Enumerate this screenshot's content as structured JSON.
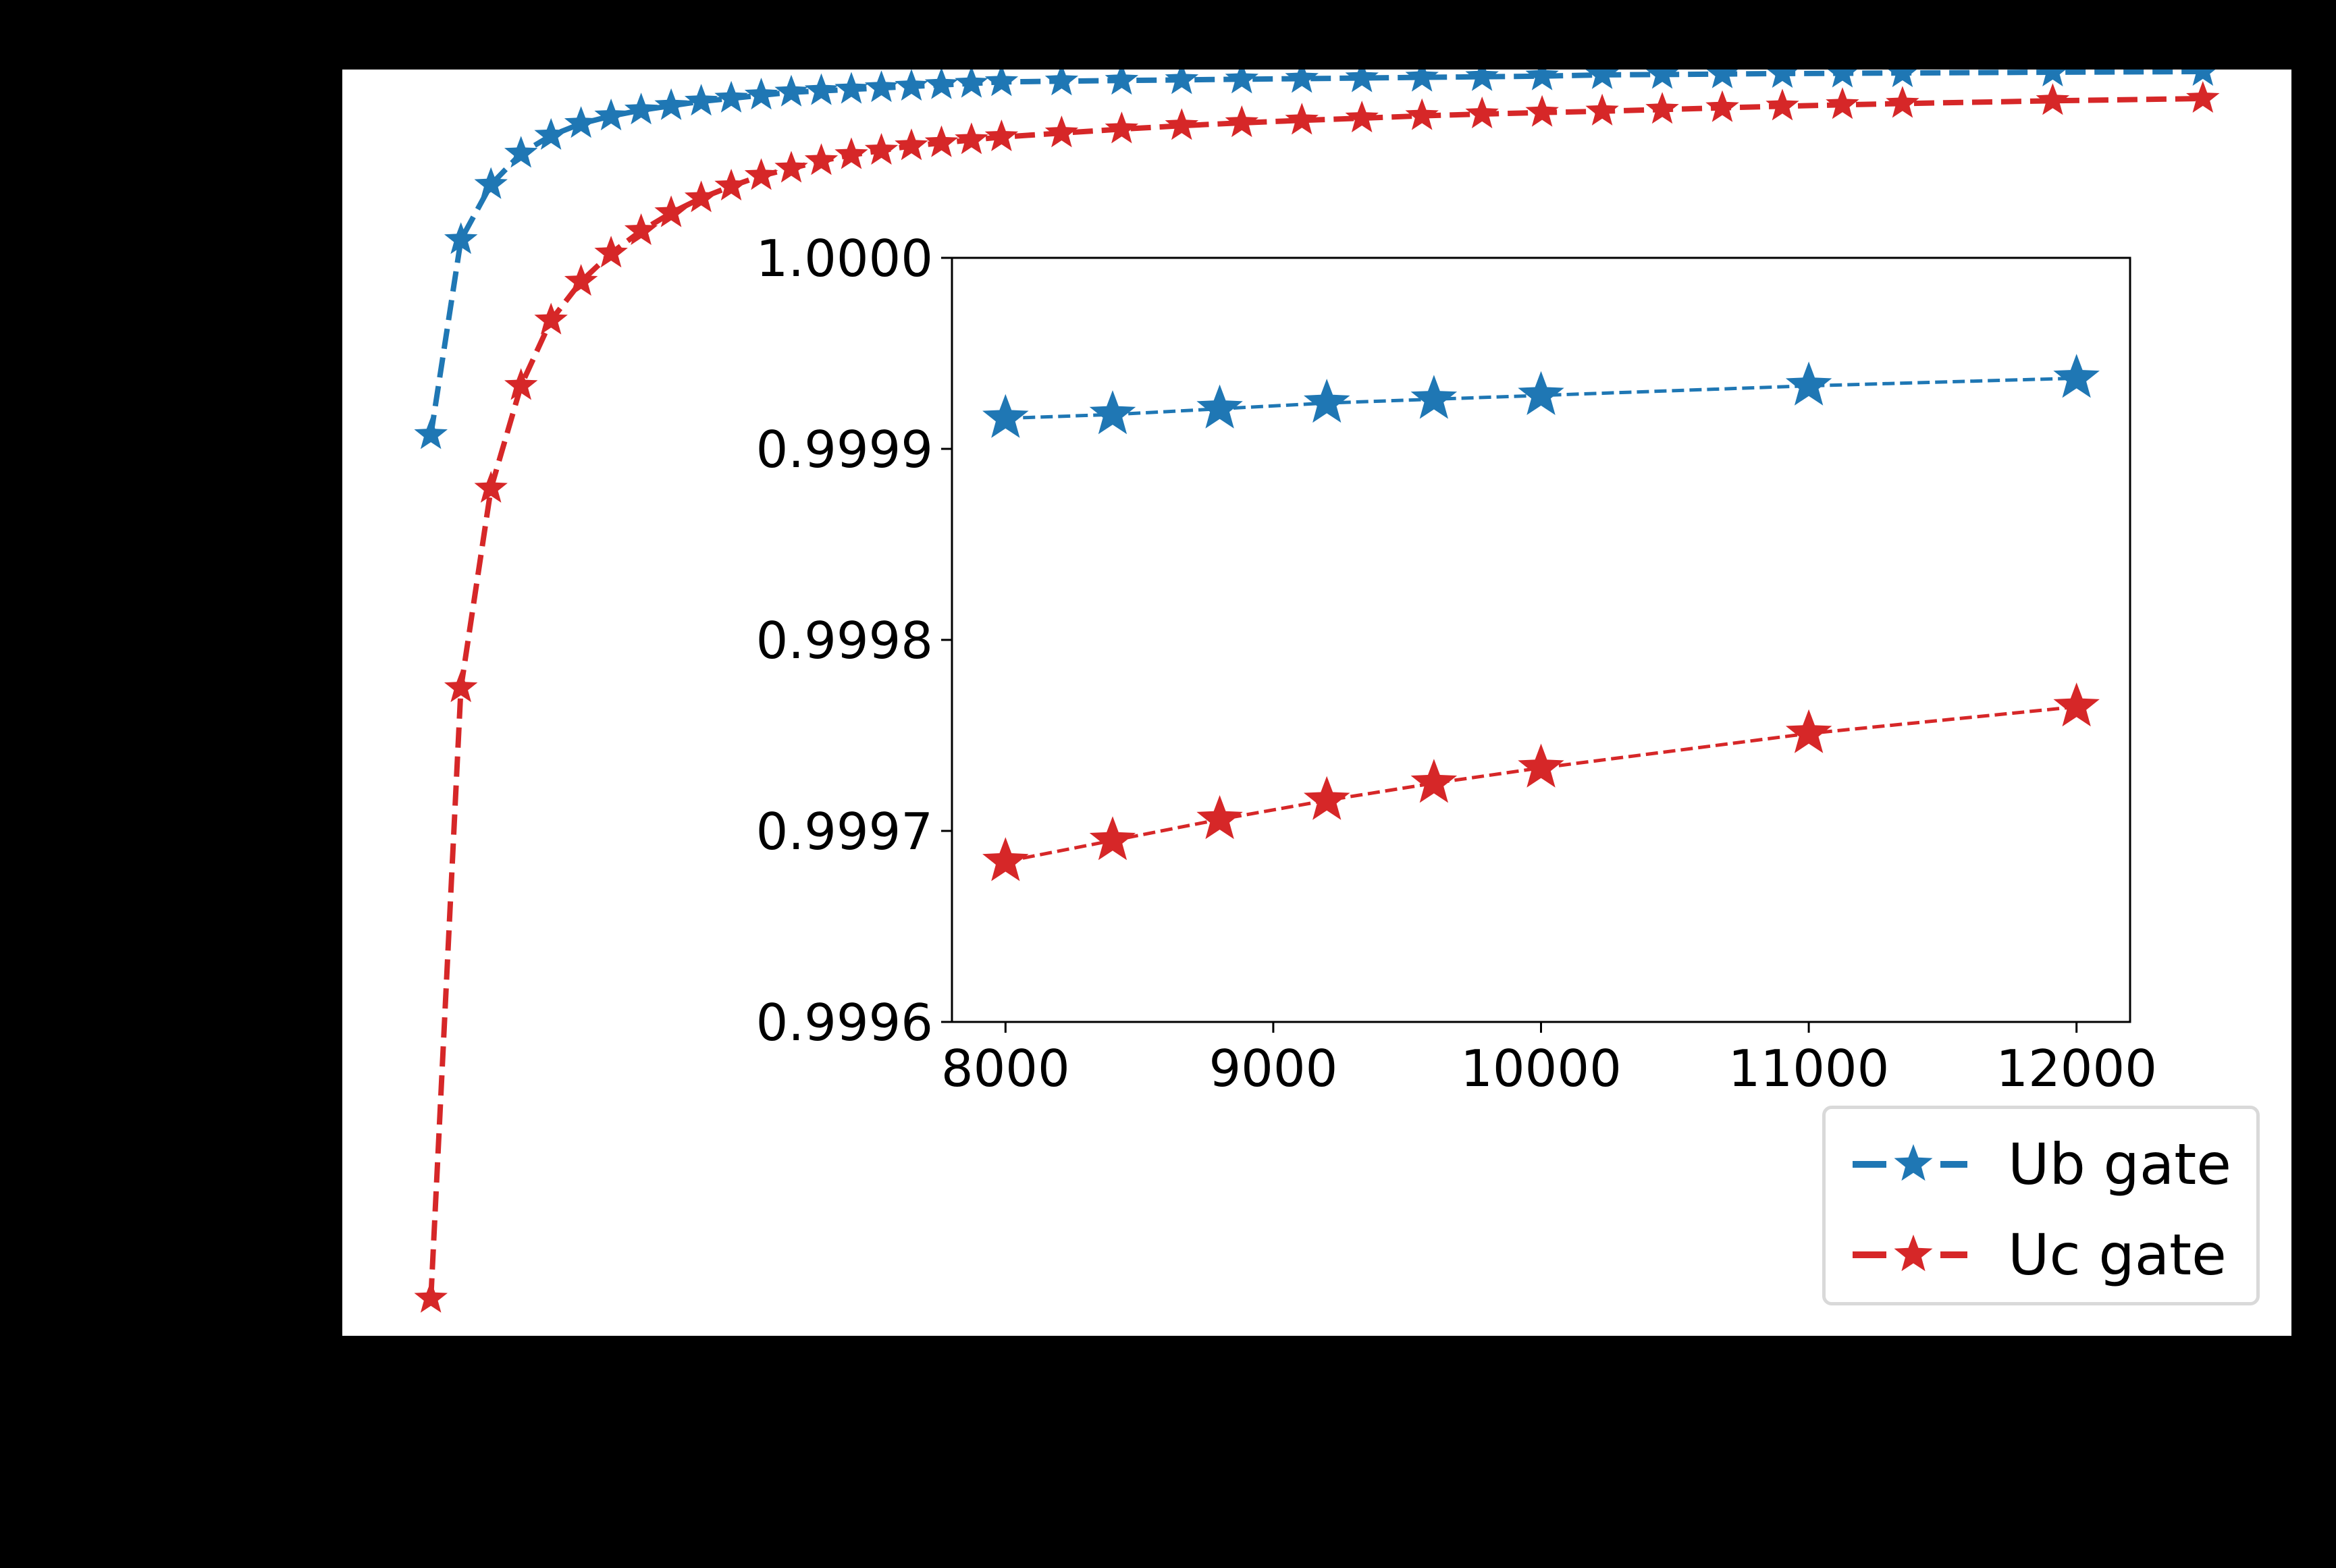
{
  "figure": {
    "background": "#000000",
    "axes_face": "#ffffff"
  },
  "legend": {
    "items": [
      {
        "label": "Ub gate",
        "color": "#1f77b4",
        "marker": "star",
        "linestyle": "dashed"
      },
      {
        "label": "Uc gate",
        "color": "#d62728",
        "marker": "star",
        "linestyle": "dashed"
      }
    ]
  },
  "inset": {
    "yticks": [
      "1.0000",
      "0.9999",
      "0.9998",
      "0.9997",
      "0.9996"
    ],
    "xticks": [
      "8000",
      "9000",
      "10000",
      "11000",
      "12000"
    ]
  },
  "chart_data": [
    {
      "type": "line",
      "role": "main",
      "title": "",
      "xlabel": "",
      "ylabel": "",
      "xlim": [
        -390,
        12590
      ],
      "ylim": [
        0.99188,
        0.99995
      ],
      "grid": false,
      "tick_labels_visible": false,
      "legend_position": "lower right",
      "x": [
        200,
        400,
        600,
        800,
        1000,
        1200,
        1400,
        1600,
        1800,
        2000,
        2200,
        2400,
        2600,
        2800,
        3000,
        3200,
        3400,
        3600,
        3800,
        4000,
        4400,
        4800,
        5200,
        5600,
        6000,
        6400,
        6800,
        7200,
        7600,
        8000,
        8400,
        8800,
        9200,
        9600,
        10000,
        11000,
        12000
      ],
      "series": [
        {
          "name": "Ub gate",
          "color": "#1f77b4",
          "marker": "star",
          "linestyle": "dashed",
          "values": [
            0.997622,
            0.998865,
            0.999216,
            0.999415,
            0.999529,
            0.999605,
            0.999653,
            0.999691,
            0.999719,
            0.999747,
            0.999766,
            0.999786,
            0.999805,
            0.999814,
            0.999823,
            0.999833,
            0.999842,
            0.999852,
            0.999861,
            0.999871,
            0.999876,
            0.99988,
            0.999884,
            0.999888,
            0.999892,
            0.999896,
            0.9999,
            0.999904,
            0.999908,
            0.999916,
            0.999918,
            0.999921,
            0.999924,
            0.999926,
            0.999928,
            0.999933,
            0.999937
          ]
        },
        {
          "name": "Uc gate",
          "color": "#d62728",
          "marker": "star",
          "linestyle": "dashed",
          "values": [
            0.992118,
            0.996009,
            0.99728,
            0.997935,
            0.998352,
            0.998599,
            0.998779,
            0.998922,
            0.999036,
            0.999131,
            0.999206,
            0.999273,
            0.99932,
            0.999368,
            0.999406,
            0.999434,
            0.999463,
            0.999482,
            0.999501,
            0.99952,
            0.999545,
            0.99957,
            0.999592,
            0.99961,
            0.999626,
            0.99964,
            0.999655,
            0.999666,
            0.999676,
            0.999684,
            0.999695,
            0.999706,
            0.999716,
            0.999725,
            0.999733,
            0.999751,
            0.999765
          ]
        }
      ]
    },
    {
      "type": "line",
      "role": "inset",
      "title": "",
      "xlabel": "",
      "ylabel": "",
      "xlim": [
        7800,
        12200
      ],
      "ylim": [
        0.9996,
        1.0
      ],
      "grid": false,
      "xticks": [
        8000,
        9000,
        10000,
        11000,
        12000
      ],
      "yticks": [
        0.9996,
        0.9997,
        0.9998,
        0.9999,
        1.0
      ],
      "x": [
        8000,
        8400,
        8800,
        9200,
        9600,
        10000,
        11000,
        12000
      ],
      "series": [
        {
          "name": "Ub gate",
          "color": "#1f77b4",
          "marker": "star",
          "linestyle": "dashed",
          "values": [
            0.999916,
            0.999918,
            0.999921,
            0.999924,
            0.999926,
            0.999928,
            0.999933,
            0.999937
          ]
        },
        {
          "name": "Uc gate",
          "color": "#d62728",
          "marker": "star",
          "linestyle": "dashed",
          "values": [
            0.999684,
            0.999695,
            0.999706,
            0.999716,
            0.999725,
            0.999733,
            0.999751,
            0.999765
          ]
        }
      ]
    }
  ]
}
